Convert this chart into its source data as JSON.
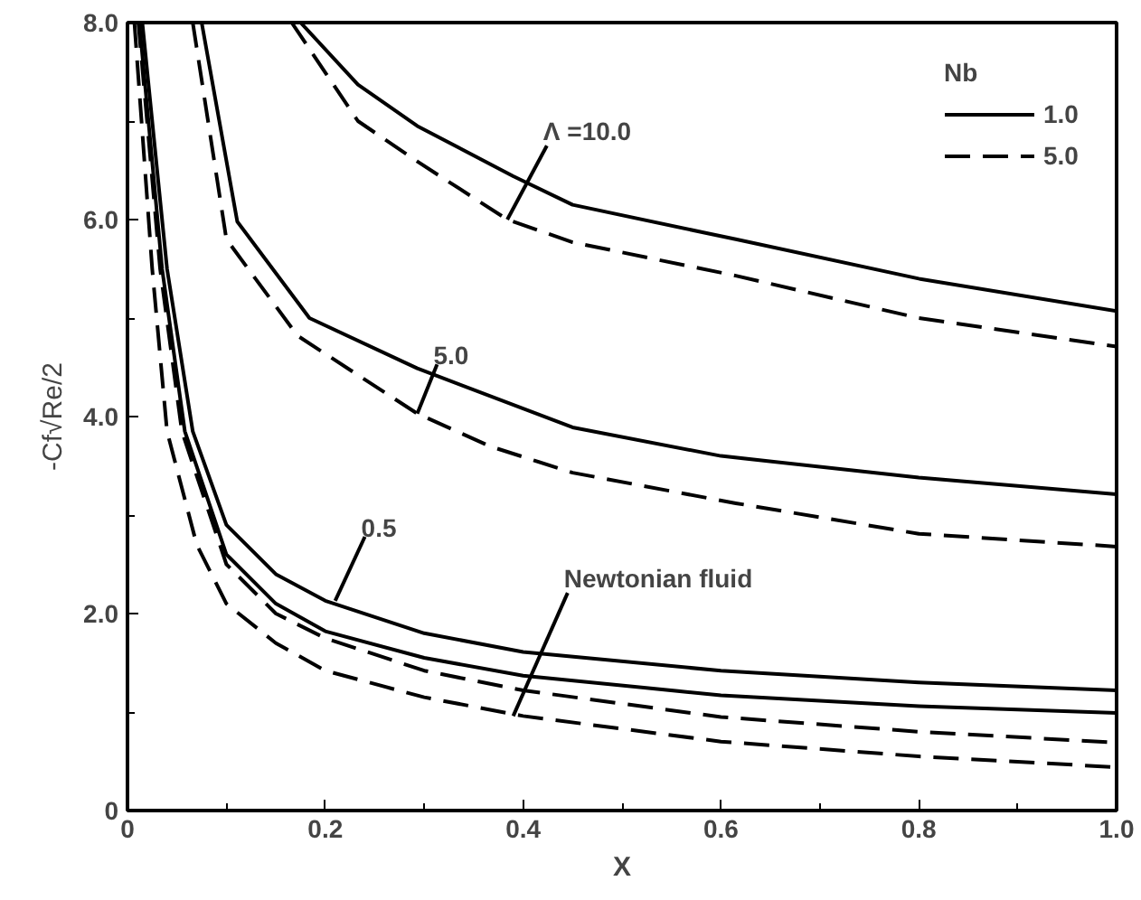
{
  "chart_data": {
    "type": "line",
    "xlabel": "X",
    "ylabel": "-Cf√Re/2",
    "legend_title": "Nb",
    "legend": "top right",
    "grid": false,
    "xlim": [
      0,
      1
    ],
    "ylim": [
      0,
      8
    ],
    "xticks": [
      0,
      0.2,
      0.4,
      0.6,
      0.8,
      {
        "value": 1,
        "label": "1.0"
      }
    ],
    "yticks": [
      0,
      {
        "value": 2,
        "label": "2.0"
      },
      {
        "value": 4,
        "label": "4.0"
      },
      {
        "value": 6,
        "label": "6.0"
      },
      {
        "value": 8,
        "label": "8.0"
      }
    ],
    "series": [
      {
        "name": "1.0",
        "color": "#000000",
        "line_style": "solid",
        "x": [
          0.175,
          0.233,
          0.293,
          0.39,
          0.45,
          0.615,
          0.8,
          1.0
        ],
        "values": [
          8,
          7.37,
          6.95,
          6.44,
          6.15,
          5.8,
          5.4,
          5.07
        ]
      },
      {
        "name": "5.0",
        "color": "#000000",
        "line_style": "dashed",
        "x": [
          0.166,
          0.233,
          0.293,
          0.384,
          0.45,
          0.615,
          0.8,
          1.0
        ],
        "values": [
          8,
          7.0,
          6.59,
          6.0,
          5.77,
          5.43,
          5.0,
          4.71
        ]
      },
      {
        "color": "#000000",
        "line_style": "solid",
        "x": [
          0.075,
          0.111,
          0.184,
          0.293,
          0.45,
          0.6,
          0.8,
          1.0
        ],
        "values": [
          8,
          5.98,
          5.0,
          4.49,
          3.89,
          3.6,
          3.38,
          3.21
        ]
      },
      {
        "color": "#000000",
        "line_style": "dashed",
        "x": [
          0.066,
          0.1,
          0.172,
          0.293,
          0.366,
          0.45,
          0.615,
          0.8,
          1.0
        ],
        "values": [
          8,
          5.8,
          4.82,
          4.03,
          3.7,
          3.43,
          3.12,
          2.81,
          2.68
        ]
      },
      {
        "color": "#000000",
        "line_style": "solid",
        "x": [
          0.015,
          0.04,
          0.066,
          0.1,
          0.15,
          0.2,
          0.3,
          0.4,
          0.6,
          0.8,
          1.0
        ],
        "values": [
          8,
          5.5,
          3.85,
          2.9,
          2.4,
          2.13,
          1.8,
          1.61,
          1.42,
          1.3,
          1.22
        ]
      },
      {
        "color": "#000000",
        "line_style": "solid",
        "x": [
          0.012,
          0.035,
          0.058,
          0.1,
          0.15,
          0.2,
          0.3,
          0.4,
          0.6,
          0.8,
          1.0
        ],
        "values": [
          8,
          5.5,
          3.85,
          2.6,
          2.1,
          1.82,
          1.55,
          1.37,
          1.17,
          1.06,
          0.99
        ]
      },
      {
        "color": "#000000",
        "line_style": "dashed",
        "x": [
          0.011,
          0.033,
          0.055,
          0.1,
          0.15,
          0.2,
          0.3,
          0.4,
          0.6,
          0.8,
          1.0
        ],
        "values": [
          8,
          5.5,
          3.85,
          2.5,
          2.0,
          1.75,
          1.42,
          1.22,
          0.95,
          0.8,
          0.69
        ]
      },
      {
        "color": "#000000",
        "line_style": "dashed",
        "x": [
          0.007,
          0.025,
          0.04,
          0.07,
          0.1,
          0.15,
          0.2,
          0.3,
          0.4,
          0.6,
          0.8,
          1.0
        ],
        "values": [
          8,
          5.5,
          3.85,
          2.7,
          2.1,
          1.7,
          1.42,
          1.15,
          0.96,
          0.7,
          0.55,
          0.44
        ]
      }
    ],
    "annotations": [
      {
        "text": "Λ =10.0",
        "x": 0.384,
        "y": 6.0
      },
      {
        "text": "5.0",
        "x": 0.293,
        "y": 4.03
      },
      {
        "text": "0.5",
        "x": 0.21,
        "y": 2.13
      },
      {
        "text": "Newtonian fluid",
        "x": 0.39,
        "y": 0.96
      }
    ]
  }
}
